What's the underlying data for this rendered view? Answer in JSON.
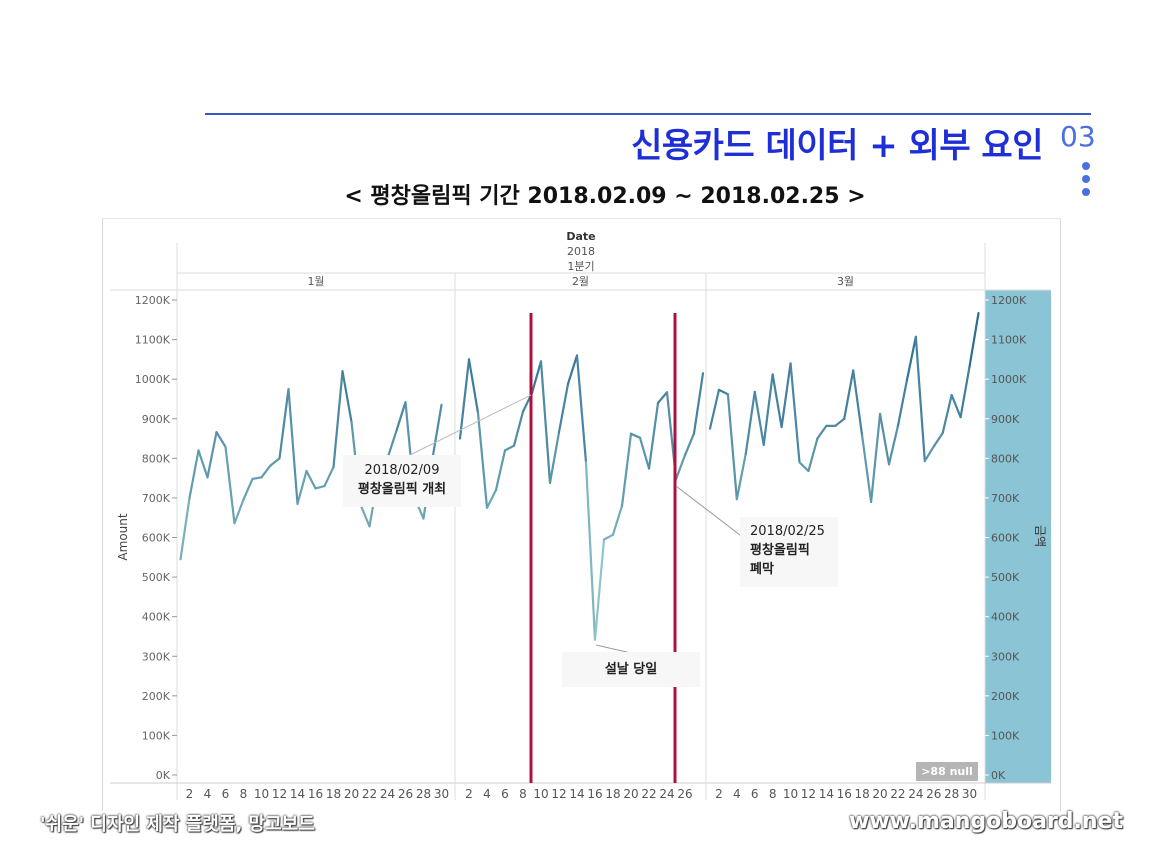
{
  "header": {
    "title": "신용카드 데이터 + 외부 요인",
    "page_number": "03",
    "subtitle": "< 평창올림픽 기간 2018.02.09  ~ 2018.02.25 >"
  },
  "footer": {
    "left_text": "'쉬운' 디자인 제작 플랫폼, 망고보드",
    "right_text": "www.mangoboard.net"
  },
  "annotations": {
    "opening_date": "2018/02/09",
    "opening_text": "평창올림픽 개최",
    "closing_date": "2018/02/25",
    "closing_text_1": "평창올림픽",
    "closing_text_2": "폐막",
    "lunar_text": "설날 당일",
    "null_badge": ">88 null"
  },
  "colors": {
    "title": "#1f2fd6",
    "accent": "#4a6fe0",
    "line_dark": "#2e6d92",
    "line_light": "#a9dcd6",
    "event_line": "#b0103c",
    "right_bar": "#8bc4d4"
  },
  "chart_data": {
    "type": "line",
    "header_label": "Date",
    "year_label": "2018",
    "quarter_label": "1분기",
    "month_labels": [
      "1월",
      "2월",
      "3월"
    ],
    "ylabel": "Amount",
    "right_axis_label": "금액",
    "ylim": [
      0,
      1200000
    ],
    "y_ticks": [
      "0K",
      "100K",
      "200K",
      "300K",
      "400K",
      "500K",
      "600K",
      "700K",
      "800K",
      "900K",
      "1000K",
      "1100K",
      "1200K"
    ],
    "x_ticks_jan": [
      "2",
      "4",
      "6",
      "8",
      "10",
      "12",
      "14",
      "16",
      "18",
      "20",
      "22",
      "24",
      "26",
      "28",
      "30"
    ],
    "x_ticks_feb": [
      "2",
      "4",
      "6",
      "8",
      "10",
      "12",
      "14",
      "16",
      "18",
      "20",
      "22",
      "24",
      "26"
    ],
    "x_ticks_mar": [
      "2",
      "4",
      "6",
      "8",
      "10",
      "12",
      "14",
      "16",
      "18",
      "20",
      "22",
      "24",
      "26",
      "28",
      "30"
    ],
    "event_lines": [
      "2018-02-09",
      "2018-02-25"
    ],
    "series": [
      {
        "month": "1월",
        "days": [
          1,
          2,
          3,
          4,
          5,
          6,
          7,
          8,
          9,
          10,
          11,
          12,
          13,
          14,
          15,
          16,
          17,
          18,
          19,
          20,
          21,
          22,
          23,
          24,
          25,
          26,
          27,
          28,
          29,
          30,
          31
        ],
        "values": [
          545000,
          700000,
          820000,
          752000,
          866000,
          829000,
          636000,
          696000,
          748000,
          752000,
          782000,
          800000,
          975000,
          685000,
          768000,
          724000,
          730000,
          778000,
          1020000,
          892000,
          683000,
          628000,
          760000,
          800000,
          870000,
          942000,
          700000,
          648000,
          800000,
          935000,
          null
        ]
      },
      {
        "month": "2월",
        "days": [
          1,
          2,
          3,
          4,
          5,
          6,
          7,
          8,
          9,
          10,
          11,
          12,
          13,
          14,
          15,
          16,
          17,
          18,
          19,
          20,
          21,
          22,
          23,
          24,
          25,
          26,
          27,
          28
        ],
        "values": [
          850000,
          1050000,
          915000,
          675000,
          720000,
          820000,
          832000,
          918000,
          965000,
          1045000,
          738000,
          866000,
          988000,
          1060000,
          790000,
          342000,
          595000,
          607000,
          680000,
          862000,
          852000,
          774000,
          940000,
          967000,
          747000,
          808000,
          863000,
          1015000
        ]
      },
      {
        "month": "3월",
        "days": [
          1,
          2,
          3,
          4,
          5,
          6,
          7,
          8,
          9,
          10,
          11,
          12,
          13,
          14,
          15,
          16,
          17,
          18,
          19,
          20,
          21,
          22,
          23,
          24,
          25,
          26,
          27,
          28,
          29,
          30,
          31
        ],
        "values": [
          875000,
          973000,
          962000,
          697000,
          812000,
          968000,
          834000,
          1012000,
          879000,
          1040000,
          790000,
          768000,
          850000,
          882000,
          882000,
          900000,
          1022000,
          857000,
          690000,
          912000,
          785000,
          882000,
          997000,
          1107000,
          793000,
          830000,
          864000,
          960000,
          904000,
          1032000,
          1167000
        ]
      }
    ]
  }
}
